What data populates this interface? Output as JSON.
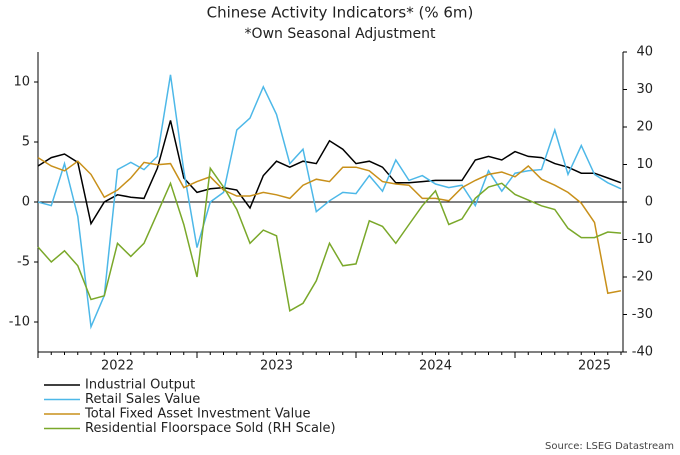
{
  "chart_data": {
    "type": "line",
    "title": "Chinese Activity Indicators* (% 6m)",
    "subtitle": "*Own Seasonal Adjustment",
    "source": "Source: LSEG Datastream",
    "categories": [
      null,
      null,
      null,
      null,
      null,
      null,
      null,
      null,
      null,
      null,
      null,
      null,
      null,
      null,
      null,
      null,
      null,
      null,
      null,
      null,
      null,
      null,
      null,
      null,
      null,
      null,
      null,
      null,
      null,
      null,
      null,
      null,
      null,
      null,
      null,
      null,
      null,
      null,
      null,
      null,
      null,
      null,
      null,
      null,
      null
    ],
    "year_labels": [
      "2022",
      "2023",
      "2024",
      "2025"
    ],
    "ylim": [
      -12.5,
      12.5
    ],
    "yticks": [
      -10,
      -5,
      0,
      5,
      10
    ],
    "y2lim": [
      -40,
      40
    ],
    "y2ticks": [
      -40,
      -30,
      -20,
      -10,
      0,
      10,
      20,
      30,
      40
    ],
    "series": [
      {
        "name": "Industrial Output",
        "color": "#000000",
        "values": [
          3.0,
          3.7,
          4.0,
          3.3,
          -1.8,
          0.0,
          0.6,
          0.4,
          0.3,
          2.8,
          6.8,
          2.0,
          0.8,
          1.1,
          1.2,
          1.0,
          -0.5,
          2.2,
          3.4,
          2.9,
          3.4,
          3.2,
          5.1,
          4.4,
          3.2,
          3.4,
          2.9,
          1.6,
          1.6,
          1.7,
          1.8,
          1.8,
          1.8,
          3.5,
          3.8,
          3.5,
          4.2,
          3.8,
          3.7,
          3.2,
          2.9,
          2.4,
          2.4,
          2.0,
          1.6
        ]
      },
      {
        "name": "Retail Sales Value",
        "color": "#4db8e8",
        "values": [
          0.0,
          -0.3,
          3.2,
          -1.2,
          -10.4,
          -7.8,
          2.7,
          3.3,
          2.7,
          3.8,
          10.6,
          2.6,
          -3.8,
          0.0,
          0.8,
          6.0,
          7.0,
          9.6,
          7.3,
          3.2,
          4.4,
          -0.8,
          0.1,
          0.8,
          0.7,
          2.2,
          0.9,
          3.5,
          1.8,
          2.2,
          1.5,
          1.2,
          1.4,
          -0.3,
          2.6,
          0.9,
          2.4,
          2.6,
          2.7,
          6.0,
          2.3,
          4.7,
          2.3,
          1.6,
          1.1
        ]
      },
      {
        "name": "Total Fixed Asset Investment Value",
        "color": "#c8901a",
        "values": [
          3.7,
          3.0,
          2.6,
          3.4,
          2.3,
          0.4,
          1.0,
          2.0,
          3.3,
          3.1,
          3.2,
          1.2,
          1.7,
          2.1,
          1.0,
          0.5,
          0.5,
          0.8,
          0.6,
          0.3,
          1.4,
          1.9,
          1.7,
          2.9,
          2.9,
          2.6,
          1.7,
          1.5,
          1.4,
          0.3,
          0.3,
          0.1,
          1.2,
          1.8,
          2.3,
          2.5,
          2.1,
          3.0,
          1.9,
          1.4,
          0.8,
          -0.1,
          -1.7,
          -7.6,
          -7.4
        ]
      },
      {
        "name": "Residential Floorspace Sold (RH Scale)",
        "color": "#7aa82a",
        "axis": "y2",
        "values": [
          -12,
          -16,
          -13,
          -17,
          -26,
          -25,
          -11,
          -14.5,
          -11,
          -3,
          5,
          -6,
          -20,
          9,
          4,
          -2,
          -11,
          -7.5,
          -9,
          -29,
          -27,
          -21,
          -11,
          -17,
          -16.5,
          -5,
          -6.5,
          -11,
          -6,
          -1,
          3,
          -6,
          -4.5,
          1,
          4,
          5,
          2,
          0.5,
          -1,
          -2,
          -7,
          -9.5,
          -9.5,
          -8,
          -8.3
        ]
      }
    ]
  }
}
